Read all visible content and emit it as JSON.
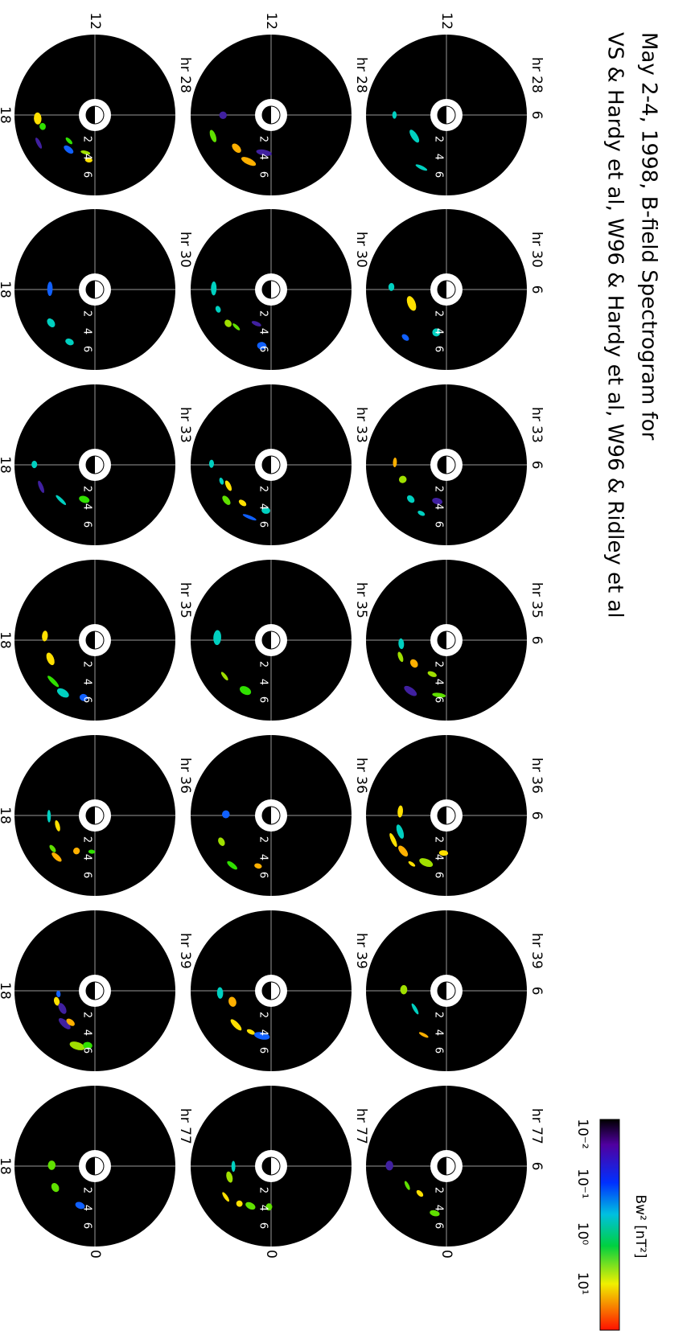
{
  "header": {
    "title_lines": [
      "May 2-4, 1998, B-field Spectrogram for",
      "VS & Hardy et al, W96 & Hardy et al, W96 & Ridley et al"
    ]
  },
  "colorbar": {
    "label": "Bw² [nT²]",
    "ticks": [
      "10⁻²",
      "10⁻¹",
      "10⁰",
      "10¹"
    ]
  },
  "panels": {
    "rows": [
      [
        "hr 28",
        "hr 30",
        "hr 33",
        "hr 35",
        "hr 36",
        "hr 39",
        "hr 77"
      ],
      [
        "hr 28",
        "hr 30",
        "hr 33",
        "hr 35",
        "hr 36",
        "hr 39",
        "hr 77"
      ],
      [
        "hr 28",
        "hr 30",
        "hr 33",
        "hr 35",
        "hr 36",
        "hr 39",
        "hr 77"
      ]
    ]
  },
  "directions": {
    "top": "6",
    "left": "12",
    "bottom": "18",
    "right": "0"
  },
  "radial_labels": [
    "2",
    "4",
    "6"
  ]
}
